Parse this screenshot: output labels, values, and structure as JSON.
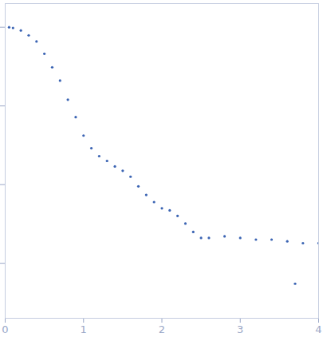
{
  "chart_data": {
    "type": "scatter",
    "color": "#3b64b3",
    "marker": "circle",
    "log": "y",
    "tick_labels": "x",
    "x": [
      0.05,
      0.1,
      0.2,
      0.3,
      0.4,
      0.5,
      0.6,
      0.7,
      0.8,
      0.9,
      1.0,
      1.1,
      1.2,
      1.3,
      1.4,
      1.5,
      1.6,
      1.7,
      1.8,
      1.9,
      2.0,
      2.1,
      2.2,
      2.3,
      2.4,
      2.5,
      2.6,
      2.8,
      3.0,
      3.2,
      3.4,
      3.6,
      3.7,
      3.8,
      4.0
    ],
    "values": [
      1.0,
      0.98,
      0.91,
      0.79,
      0.66,
      0.46,
      0.31,
      0.21,
      0.12,
      0.072,
      0.042,
      0.029,
      0.023,
      0.02,
      0.017,
      0.015,
      0.0126,
      0.0095,
      0.0074,
      0.006,
      0.005,
      0.0047,
      0.004,
      0.0032,
      0.0025,
      0.0021,
      0.0021,
      0.0022,
      0.0021,
      0.002,
      0.002,
      0.0019,
      0.00055,
      0.0018,
      0.0018
    ],
    "xlim": [
      0,
      4
    ],
    "xticks": [
      0,
      1,
      2,
      3,
      4
    ],
    "ylim": [
      0.0002,
      2
    ],
    "yticks": [
      0.001,
      0.01,
      0.1,
      1
    ]
  }
}
